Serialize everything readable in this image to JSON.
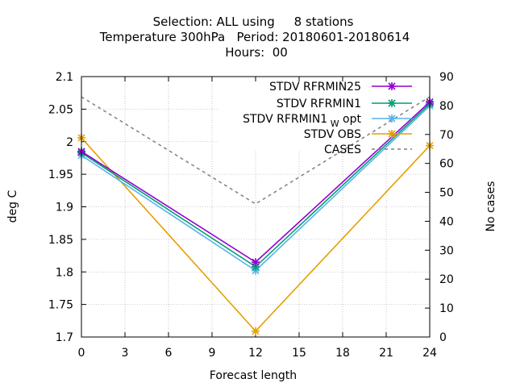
{
  "chart_data": {
    "type": "line",
    "title": [
      "Selection: ALL using     8 stations",
      "Temperature 300hPa   Period: 20180601-20180614",
      "Hours:  00"
    ],
    "xlabel": "Forecast length",
    "ylabel": "deg C",
    "y2label": "No cases",
    "x": [
      0,
      12,
      24
    ],
    "xticks": [
      "0",
      "3",
      "6",
      "9",
      "12",
      "15",
      "18",
      "21",
      "24"
    ],
    "xlim": [
      0,
      24
    ],
    "ylim": [
      1.7,
      2.1
    ],
    "yticks": [
      "1.7",
      "1.75",
      "1.8",
      "1.85",
      "1.9",
      "1.95",
      "2",
      "2.05",
      "2.1"
    ],
    "y2lim": [
      0,
      90
    ],
    "y2ticks": [
      "0",
      "10",
      "20",
      "30",
      "40",
      "50",
      "60",
      "70",
      "80",
      "90"
    ],
    "grid": true,
    "legend_position": "top-right",
    "series": [
      {
        "name": "STDV RFRMIN25",
        "color": "#9400d3",
        "marker": "x-star",
        "axis": "y",
        "values": [
          1.985,
          1.815,
          2.061
        ]
      },
      {
        "name": "STDV RFRMIN1",
        "color": "#009e73",
        "marker": "x-star",
        "axis": "y",
        "values": [
          1.983,
          1.808,
          2.058
        ]
      },
      {
        "name": "STDV RFRMIN1",
        "name_subscript": "W",
        "name_suffix": "opt",
        "color": "#56b4e9",
        "marker": "x-star",
        "axis": "y",
        "values": [
          1.979,
          1.802,
          2.055
        ]
      },
      {
        "name": "STDV OBS",
        "color": "#e69f00",
        "marker": "x-star",
        "axis": "y",
        "values": [
          2.006,
          1.709,
          1.994
        ]
      },
      {
        "name": "CASES",
        "color": "#808080",
        "marker": "none",
        "dashed": true,
        "axis": "y2",
        "values": [
          83,
          46,
          83
        ]
      }
    ]
  }
}
